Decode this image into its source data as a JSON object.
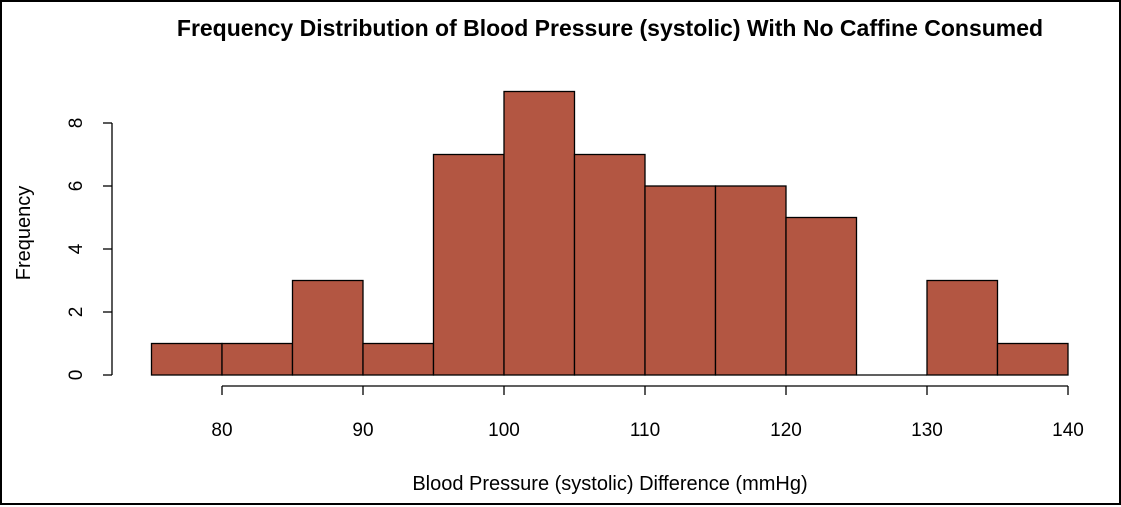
{
  "chart_data": {
    "type": "bar",
    "title": "Frequency Distribution of Blood Pressure (systolic) With No Caffine Consumed",
    "xlabel": "Blood Pressure (systolic) Difference (mmHg)",
    "ylabel": "Frequency",
    "bin_edges": [
      75,
      80,
      85,
      90,
      95,
      100,
      105,
      110,
      115,
      120,
      125,
      130,
      135,
      140
    ],
    "values": [
      1,
      1,
      3,
      1,
      7,
      9,
      7,
      6,
      6,
      5,
      0,
      3,
      1
    ],
    "x_ticks": [
      "80",
      "90",
      "100",
      "110",
      "120",
      "130",
      "140"
    ],
    "y_ticks": [
      "0",
      "2",
      "4",
      "6",
      "8"
    ],
    "xlim": [
      80,
      140
    ],
    "ylim": [
      0,
      8
    ],
    "bar_color": "#b35642",
    "grid": false,
    "legend": "none"
  }
}
